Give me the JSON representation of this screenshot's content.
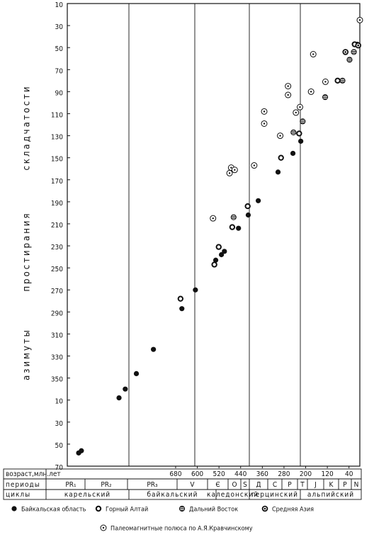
{
  "chart_data": {
    "type": "scatter",
    "ylabel": [
      "азимуты",
      "простирания",
      "складчатости"
    ],
    "ylim": [
      10,
      430
    ],
    "reverse_y": true,
    "yticks": [
      10,
      30,
      50,
      70,
      90,
      110,
      130,
      150,
      170,
      190,
      210,
      230,
      250,
      270,
      290,
      310,
      330,
      350,
      {
        "value": 370,
        "label": "10"
      },
      {
        "value": 390,
        "label": "30"
      },
      {
        "value": 410,
        "label": "50"
      },
      {
        "value": 430,
        "label": "70"
      }
    ],
    "xlim": [
      1080,
      0
    ],
    "xlabel": "возраст,млн.лет",
    "xticks": [
      680,
      600,
      520,
      440,
      360,
      280,
      200,
      120,
      40
    ],
    "periods_label": "периоды",
    "periods": [
      "PR₁",
      "PR₂",
      "PR₃",
      "V",
      "Є",
      "O",
      "S",
      "Д",
      "C",
      "P",
      "T",
      "J",
      "K",
      "P",
      "N"
    ],
    "cycles_label": "циклы",
    "cycles": [
      "карельский",
      "байкальский",
      "каледонский",
      "герцинский",
      "альпийский"
    ],
    "series": [
      {
        "name": "Байкальская область",
        "marker": "filled",
        "color": "#111111",
        "x": [
          1038,
          1028,
          889,
          866,
          825,
          762,
          657,
          607,
          532,
          511,
          500,
          448,
          412,
          375,
          302,
          247,
          218,
          9
        ],
        "values": [
          418,
          416,
          368,
          360,
          346,
          324,
          287,
          270,
          243,
          238,
          235,
          214,
          202,
          189,
          163,
          146,
          135,
          47
        ]
      },
      {
        "name": "Горный Алтай",
        "marker": "ring",
        "color": "#111111",
        "x": [
          662,
          537,
          521,
          471,
          414,
          291,
          224,
          82,
          19
        ],
        "values": [
          278,
          247,
          231,
          213,
          194,
          150,
          128,
          80,
          47
        ]
      },
      {
        "name": "Дальний Восток",
        "marker": "striped",
        "color": "#111111",
        "x": [
          466,
          245,
          211,
          128,
          64,
          38,
          22
        ],
        "values": [
          204,
          127,
          117,
          95,
          80,
          61,
          54
        ]
      },
      {
        "name": "Средняя Азия",
        "marker": "dot-bold",
        "color": "#111111",
        "x": [
          53,
          6
        ],
        "values": [
          54,
          48
        ]
      },
      {
        "name": "Палеомагнитные полюса по А.Я.Кравчинскому",
        "marker": "dot",
        "color": "#111111",
        "x": [
          542,
          475,
          481,
          462,
          390,
          353,
          353,
          294,
          265,
          265,
          236,
          221,
          172,
          180,
          127,
          0
        ],
        "values": [
          205,
          159,
          164,
          161,
          157,
          108,
          119,
          130,
          85,
          93,
          109,
          104,
          56,
          90,
          81,
          25
        ]
      }
    ]
  }
}
